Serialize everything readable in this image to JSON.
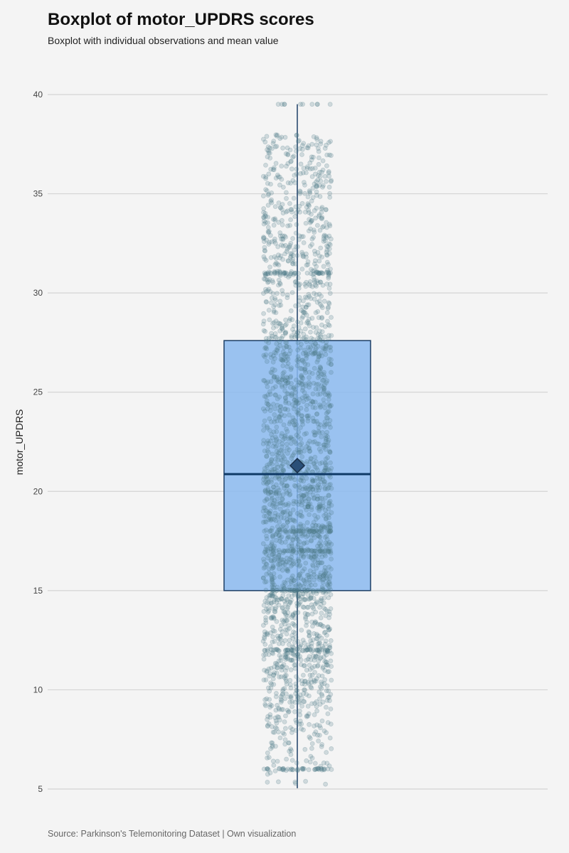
{
  "chart_data": {
    "type": "boxplot",
    "title": "Boxplot of motor_UPDRS scores",
    "subtitle": "Boxplot with individual observations and mean value",
    "ylabel": "motor_UPDRS",
    "caption": "Source: Parkinson's Telemonitoring Dataset | Own visualization",
    "ylim": [
      5,
      40
    ],
    "yticks": [
      5,
      10,
      15,
      20,
      25,
      30,
      35,
      40
    ],
    "grid": "horizontal",
    "box": {
      "min": 5.04,
      "q1": 15.0,
      "median": 20.87,
      "q3": 27.6,
      "max": 39.51,
      "mean": 21.3
    },
    "observations": {
      "count": 5875,
      "visible_range": [
        5.04,
        39.51
      ],
      "rendering": "jittered semi-transparent points"
    },
    "colors": {
      "box_fill": "#8ab8ee",
      "box_stroke": "#1c3f66",
      "median": "#0f3a66",
      "points": "#4f7a87",
      "mean_marker": "#2a4f78",
      "grid": "#d4d4d4"
    }
  }
}
